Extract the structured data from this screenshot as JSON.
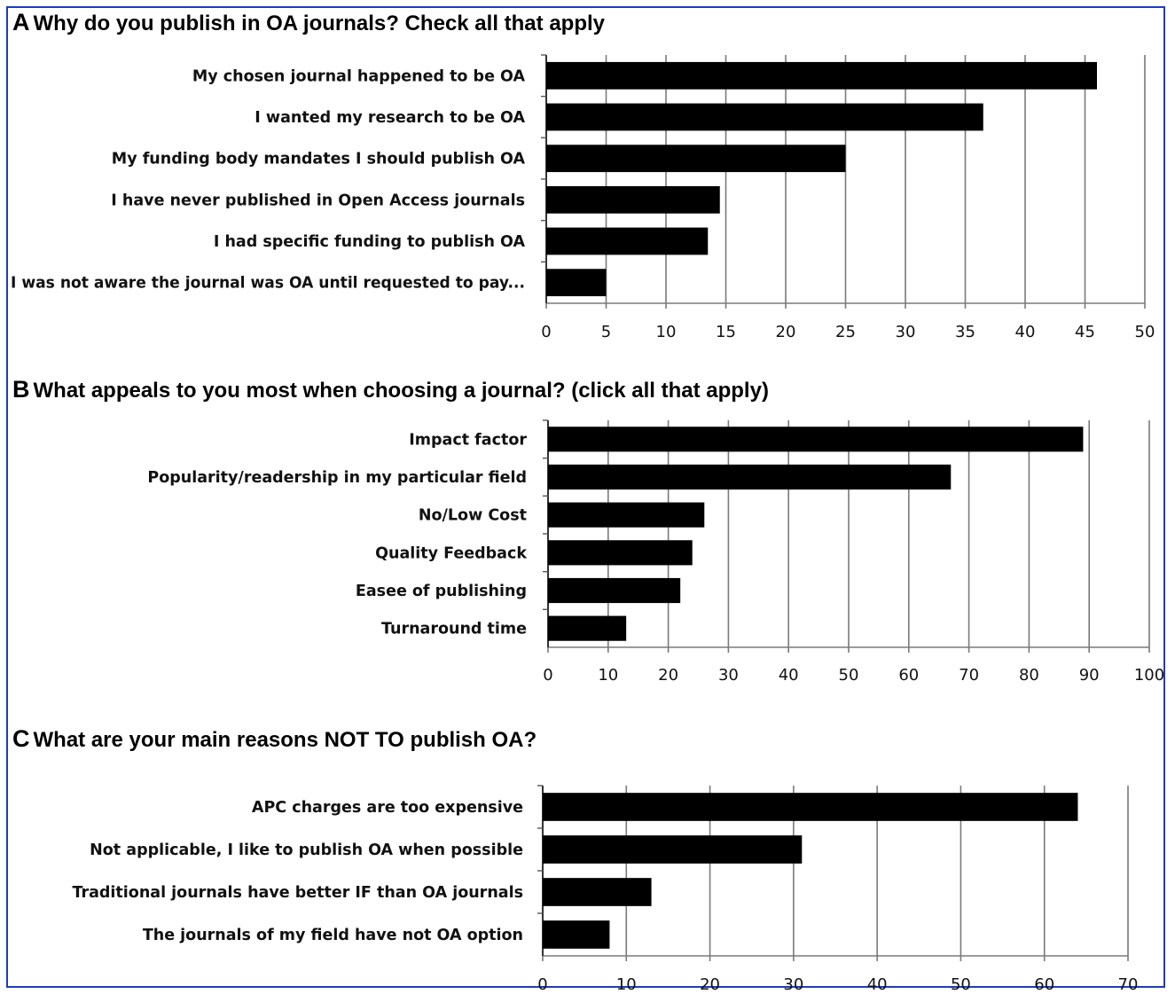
{
  "chart_data": [
    {
      "type": "bar",
      "orientation": "horizontal",
      "panel": "A",
      "title": "Why do you publish in OA journals? Check all that apply",
      "categories": [
        "My chosen journal happened to be OA",
        "I wanted my research to be OA",
        "My funding body mandates I should publish OA",
        "I have never published in Open Access journals",
        "I had specific funding to publish OA",
        "I was not aware the journal was OA until requested to pay..."
      ],
      "values": [
        46,
        36.5,
        25,
        14.5,
        13.5,
        5
      ],
      "xlim": [
        0,
        50
      ],
      "xticks": [
        0,
        5,
        10,
        15,
        20,
        25,
        30,
        35,
        40,
        45,
        50
      ],
      "grid": "vertical",
      "bar_color": "#000000"
    },
    {
      "type": "bar",
      "orientation": "horizontal",
      "panel": "B",
      "title": "What appeals to you most when choosing a journal? (click all that apply)",
      "categories": [
        "Impact factor",
        "Popularity/readership in my particular field",
        "No/Low Cost",
        "Quality Feedback",
        "Easee of publishing",
        "Turnaround time"
      ],
      "values": [
        89,
        67,
        26,
        24,
        22,
        13
      ],
      "xlim": [
        0,
        100
      ],
      "xticks": [
        0,
        10,
        20,
        30,
        40,
        50,
        60,
        70,
        80,
        90,
        100
      ],
      "grid": "vertical",
      "bar_color": "#000000"
    },
    {
      "type": "bar",
      "orientation": "horizontal",
      "panel": "C",
      "title": "What are your main reasons NOT TO publish OA?",
      "categories": [
        "APC charges are too expensive",
        "Not applicable, I like to publish OA when possible",
        "Traditional journals have better IF than OA journals",
        "The journals of my field have not OA option"
      ],
      "values": [
        64,
        31,
        13,
        8
      ],
      "xlim": [
        0,
        70
      ],
      "xticks": [
        0,
        10,
        20,
        30,
        40,
        50,
        60,
        70
      ],
      "grid": "vertical",
      "bar_color": "#000000"
    }
  ]
}
